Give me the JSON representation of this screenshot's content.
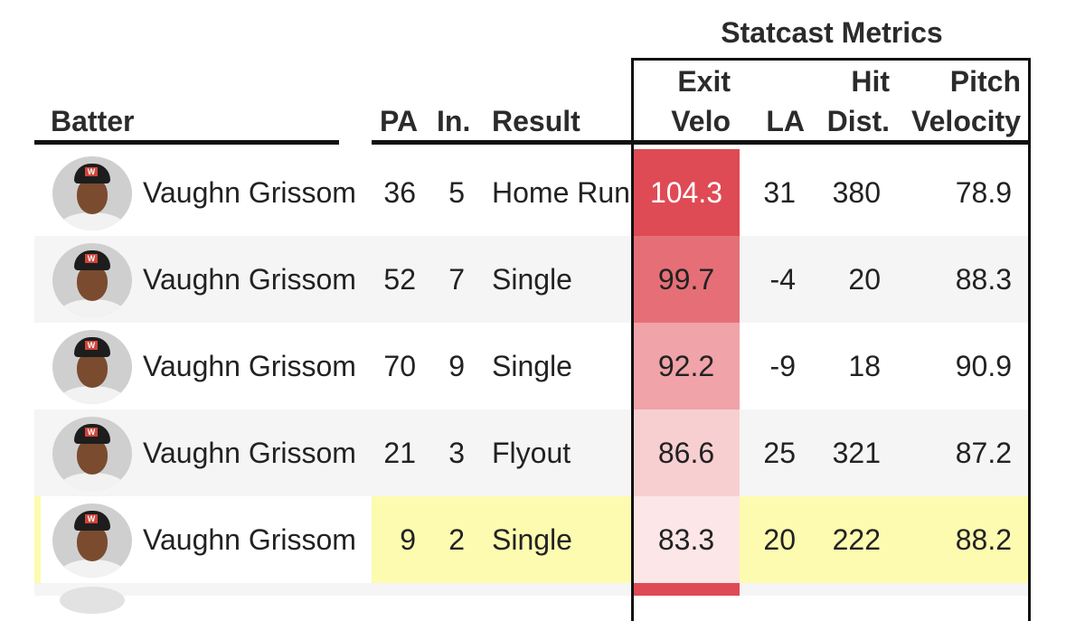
{
  "group_title": "Statcast Metrics",
  "headers": {
    "batter": "Batter",
    "pa": "PA",
    "inning": "In.",
    "result": "Result",
    "exit_velo_line1": "Exit",
    "exit_velo_line2": "Velo",
    "la": "LA",
    "hit_dist_line1": "Hit",
    "hit_dist_line2": "Dist.",
    "pitch_velocity_line1": "Pitch",
    "pitch_velocity_line2": "Velocity"
  },
  "rows": [
    {
      "batter": "Vaughn Grissom",
      "pa": "36",
      "inning": "5",
      "result": "Home Run",
      "exit_velo": "104.3",
      "la": "31",
      "hit_dist": "380",
      "pitch_velocity": "78.9",
      "exit_velo_color": "#de4b55",
      "highlighted": false,
      "striped": false
    },
    {
      "batter": "Vaughn Grissom",
      "pa": "52",
      "inning": "7",
      "result": "Single",
      "exit_velo": "99.7",
      "la": "-4",
      "hit_dist": "20",
      "pitch_velocity": "88.3",
      "exit_velo_color": "#e66f77",
      "highlighted": false,
      "striped": true
    },
    {
      "batter": "Vaughn Grissom",
      "pa": "70",
      "inning": "9",
      "result": "Single",
      "exit_velo": "92.2",
      "la": "-9",
      "hit_dist": "18",
      "pitch_velocity": "90.9",
      "exit_velo_color": "#f0a3a8",
      "highlighted": false,
      "striped": false
    },
    {
      "batter": "Vaughn Grissom",
      "pa": "21",
      "inning": "3",
      "result": "Flyout",
      "exit_velo": "86.6",
      "la": "25",
      "hit_dist": "321",
      "pitch_velocity": "87.2",
      "exit_velo_color": "#f8cfd1",
      "highlighted": false,
      "striped": true
    },
    {
      "batter": "Vaughn Grissom",
      "pa": "9",
      "inning": "2",
      "result": "Single",
      "exit_velo": "83.3",
      "la": "20",
      "hit_dist": "222",
      "pitch_velocity": "88.2",
      "exit_velo_color": "#fce6e7",
      "highlighted": true,
      "striped": false
    }
  ],
  "colors": {
    "stripe": "#f5f5f5",
    "highlight": "#fdfbb0",
    "exit_velo_next_row": "#de4b55"
  }
}
